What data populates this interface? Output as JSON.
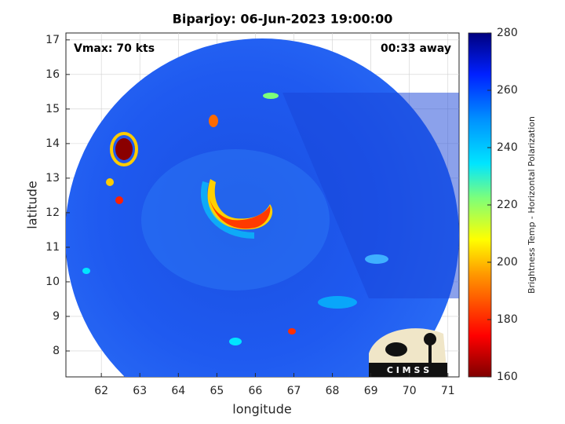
{
  "chart_data": {
    "type": "image",
    "title": "Biparjoy: 06-Jun-2023 19:00:00",
    "annotations": [
      "Vmax: 70 kts",
      "00:33 away"
    ],
    "xlabel": "longitude",
    "ylabel": "latitude",
    "xlim": [
      61.08,
      71.29
    ],
    "ylim": [
      7.25,
      17.2
    ],
    "xticks": [
      62,
      63,
      64,
      65,
      66,
      67,
      68,
      69,
      70,
      71
    ],
    "yticks": [
      8,
      9,
      10,
      11,
      12,
      13,
      14,
      15,
      16,
      17
    ],
    "grid": true,
    "colorbar": {
      "label": "Brightness Temp - Horizontal Polarization",
      "lim": [
        160,
        280
      ],
      "ticks": [
        160,
        180,
        200,
        220,
        240,
        260,
        280
      ]
    },
    "logo_text": "C I M S S"
  }
}
